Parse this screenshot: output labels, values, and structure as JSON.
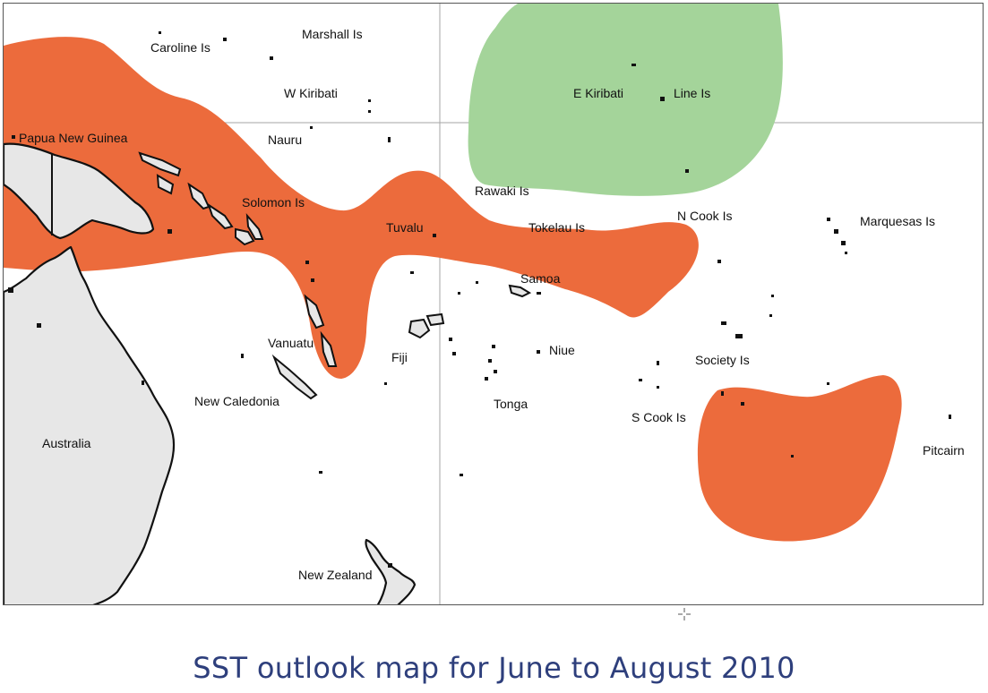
{
  "caption": "SST outlook map for June to August 2010",
  "colors": {
    "above_normal": "#ec6b3c",
    "below_normal": "#a4d49a",
    "land": "#e7e7e7",
    "coastline": "#111111",
    "caption": "#2e3f7c"
  },
  "labels": {
    "caroline": "Caroline Is",
    "marshall": "Marshall Is",
    "w_kiribati": "W Kiribati",
    "e_kiribati": "E Kiribati",
    "line": "Line Is",
    "png": "Papua New Guinea",
    "nauru": "Nauru",
    "solomon": "Solomon Is",
    "rawaki": "Rawaki Is",
    "tuvalu": "Tuvalu",
    "tokelau": "Tokelau Is",
    "n_cook": "N Cook Is",
    "marquesas": "Marquesas Is",
    "samoa": "Samoa",
    "vanuatu": "Vanuatu",
    "fiji": "Fiji",
    "niue": "Niue",
    "society": "Society Is",
    "new_caledonia": "New Caledonia",
    "tonga": "Tonga",
    "s_cook": "S Cook Is",
    "australia": "Australia",
    "pitcairn": "Pitcairn",
    "new_zealand": "New Zealand"
  }
}
